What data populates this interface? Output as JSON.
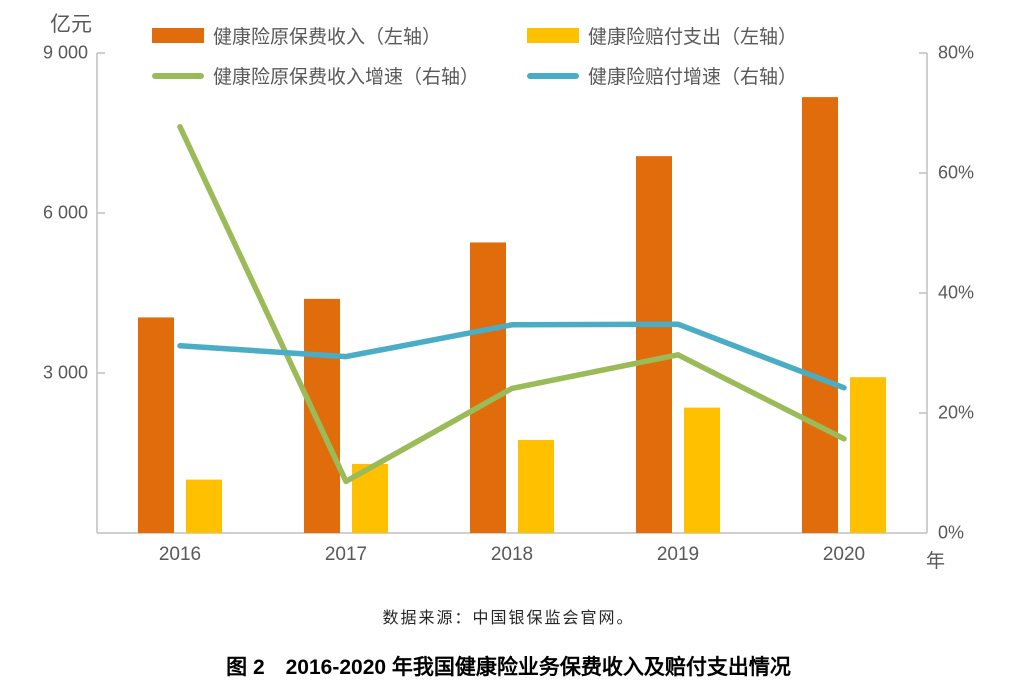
{
  "figure": {
    "caption": "图 2　2016-2020 年我国健康险业务保费收入及赔付支出情况",
    "source": "数据来源：中国银保监会官网。"
  },
  "axes": {
    "left": {
      "unit": "亿元",
      "ticks": [
        "9 000",
        "6 000",
        "3 000"
      ]
    },
    "right": {
      "ticks": [
        "80%",
        "60%",
        "40%",
        "20%",
        "0%"
      ]
    },
    "x": {
      "unit": "年"
    }
  },
  "chart_data": {
    "type": "combo-bar-line",
    "categories": [
      "2016",
      "2017",
      "2018",
      "2019",
      "2020"
    ],
    "series": [
      {
        "name": "健康险原保费收入（左轴）",
        "type": "bar",
        "axis": "left",
        "color": "#E06C0C",
        "values": [
          4042,
          4390,
          5448,
          7066,
          8173
        ]
      },
      {
        "name": "健康险赔付支出（左轴）",
        "type": "bar",
        "axis": "left",
        "color": "#FFC000",
        "values": [
          1001,
          1295,
          1744,
          2351,
          2921
        ]
      },
      {
        "name": "健康险原保费收入增速（右轴）",
        "type": "line",
        "axis": "right",
        "color": "#9BBB59",
        "values": [
          67.7,
          8.6,
          24.1,
          29.7,
          15.7
        ]
      },
      {
        "name": "健康险赔付增速（右轴）",
        "type": "line",
        "axis": "right",
        "color": "#4BACC6",
        "values": [
          31.2,
          29.4,
          34.7,
          34.8,
          24.2
        ]
      }
    ],
    "left_axis": {
      "label": "亿元",
      "min": 0,
      "max": 9000,
      "tick_step": 3000
    },
    "right_axis": {
      "min": 0,
      "max": 80,
      "tick_step": 20,
      "format": "percent"
    },
    "x_label": "年",
    "axis_color": "#BFBFBF",
    "grid": false,
    "legend_position": "top"
  }
}
